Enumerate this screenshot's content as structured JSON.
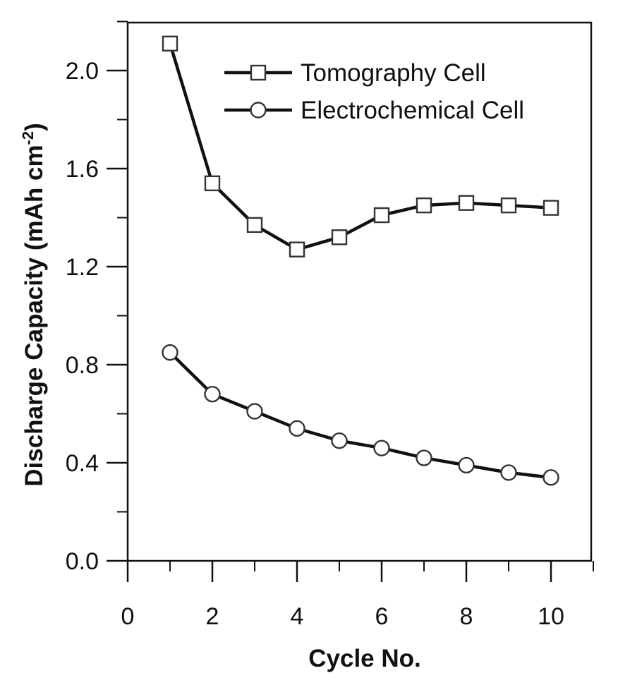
{
  "chart_data": {
    "type": "line",
    "title": "",
    "xlabel": "Cycle No.",
    "ylabel": "Discharge Capacity (mAh cm",
    "ylabel_sup": "-2",
    "ylabel_close": ")",
    "xlim": [
      0,
      11
    ],
    "ylim": [
      0,
      2.2
    ],
    "x_ticks": [
      0,
      2,
      4,
      6,
      8,
      10
    ],
    "x_tick_labels": [
      "0",
      "2",
      "4",
      "6",
      "8",
      "10"
    ],
    "y_ticks": [
      0,
      0.4,
      0.8,
      1.2,
      1.6,
      2.0
    ],
    "y_tick_labels": [
      "0.0",
      "0.4",
      "0.8",
      "1.2",
      "1.6",
      "2.0"
    ],
    "x_minor_ticks": [
      1,
      3,
      5,
      7,
      9,
      11
    ],
    "y_minor_ticks": [
      0.2,
      0.6,
      1.0,
      1.4,
      1.8,
      2.2
    ],
    "grid": false,
    "legend_position": "top-right",
    "series": [
      {
        "name": "Tomography Cell",
        "marker": "square",
        "x": [
          1,
          2,
          3,
          4,
          5,
          6,
          7,
          8,
          9,
          10
        ],
        "values": [
          2.11,
          1.54,
          1.37,
          1.27,
          1.32,
          1.41,
          1.45,
          1.46,
          1.45,
          1.44
        ]
      },
      {
        "name": "Electrochemical Cell",
        "marker": "circle",
        "x": [
          1,
          2,
          3,
          4,
          5,
          6,
          7,
          8,
          9,
          10
        ],
        "values": [
          0.85,
          0.68,
          0.61,
          0.54,
          0.49,
          0.46,
          0.42,
          0.39,
          0.36,
          0.34
        ]
      }
    ]
  }
}
